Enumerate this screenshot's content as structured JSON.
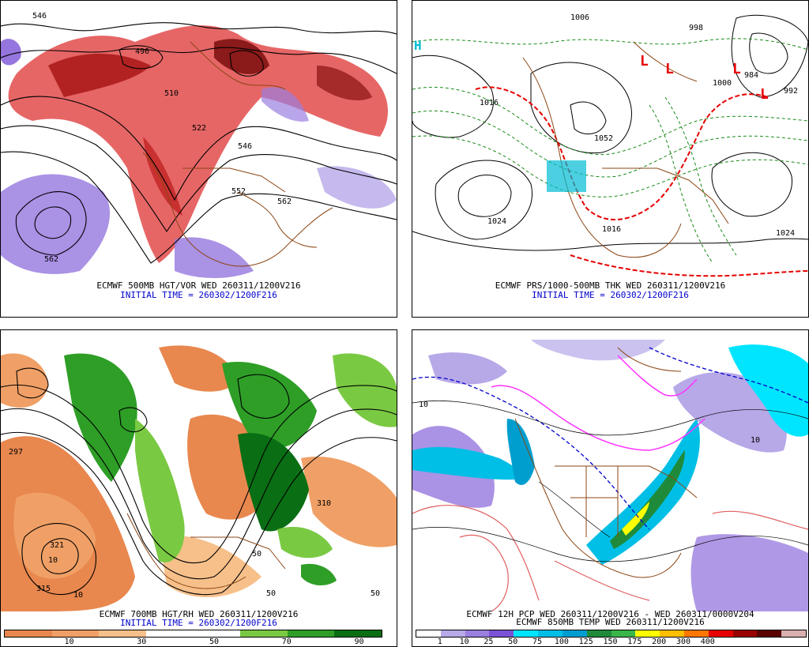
{
  "panels": [
    {
      "caption1": "ECMWF 500MB HGT/VOR WED 260311/1200V216",
      "caption2": "INITIAL TIME = 260302/1200F216",
      "labels": [
        "546",
        "496",
        "510",
        "522",
        "546",
        "552",
        "562",
        "562"
      ]
    },
    {
      "caption1": "ECMWF PRS/1000-500MB THK WED 260311/1200V216",
      "caption2": "INITIAL TIME = 260302/1200F216",
      "labels": [
        "H",
        "L",
        "L",
        "L",
        "L",
        "1006",
        "998",
        "1000",
        "984",
        "1016",
        "1052",
        "1024",
        "1024",
        "1016",
        "992"
      ]
    },
    {
      "caption1": "ECMWF 700MB HGT/RH WED 260311/1200V216",
      "caption2": "INITIAL TIME = 260302/1200F216",
      "labels": [
        "297",
        "321",
        "315",
        "10",
        "10",
        "50",
        "50",
        "50",
        "310"
      ],
      "colorbar": {
        "colors": [
          "#e8874e",
          "#f0a066",
          "#f7c08a",
          "#ffffff",
          "#ffffff",
          "#7ac943",
          "#2e9e27",
          "#0a6e14"
        ],
        "ticks": [
          "10",
          "30",
          "50",
          "70",
          "90"
        ]
      }
    },
    {
      "caption1": "ECMWF 12H PCP WED 260311/1200V216 - WED 260311/0000V204",
      "caption2": "ECMWF 850MB TEMP WED 260311/1200V216",
      "labels": [
        "10",
        "10"
      ],
      "colorbar": {
        "colors": [
          "#ffffff",
          "#b7a8e8",
          "#9b7fe0",
          "#7b52d6",
          "#00e5ff",
          "#00bfe6",
          "#009ecf",
          "#1f8b3a",
          "#39b54a",
          "#ffff00",
          "#ffbf00",
          "#ff7700",
          "#e60000",
          "#990000",
          "#5a0000",
          "#d9b0b0"
        ],
        "ticks": [
          "1",
          "10",
          "25",
          "50",
          "75",
          "100",
          "125",
          "150",
          "175",
          "200",
          "300",
          "400"
        ]
      }
    }
  ]
}
